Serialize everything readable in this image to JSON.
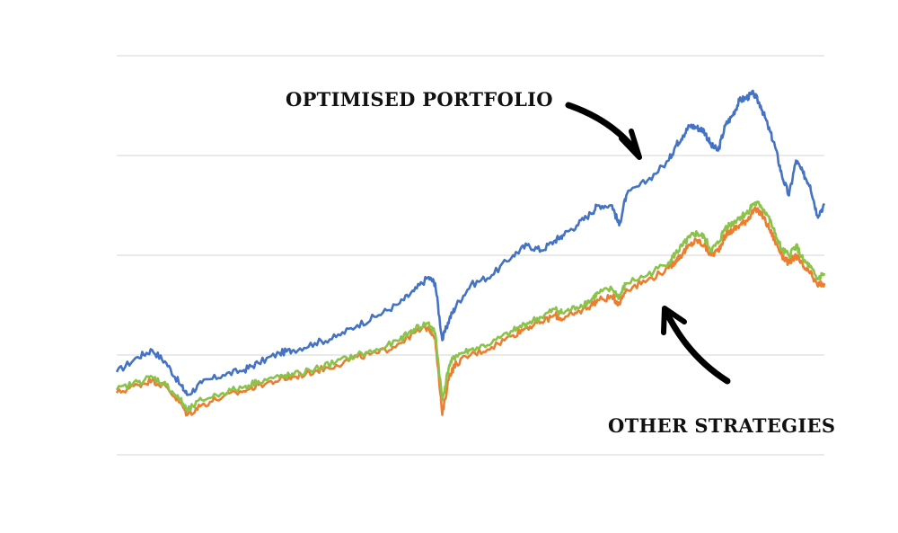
{
  "chart_data": {
    "type": "line",
    "title": "",
    "xlabel": "",
    "ylabel": "",
    "x_range": [
      0,
      100
    ],
    "ylim": [
      0,
      4
    ],
    "gridlines": [
      0,
      1,
      2,
      3,
      4
    ],
    "grid": true,
    "legend": "none",
    "annotations": [
      {
        "text": "OPTIMISED PORTFOLIO",
        "target_series": 0
      },
      {
        "text": "OTHER STRATEGIES",
        "target_series": 1
      }
    ],
    "series": [
      {
        "color": "#4472C4",
        "x": [
          0,
          3,
          5,
          7,
          9,
          10,
          12,
          15,
          18,
          20,
          23,
          25,
          28,
          31,
          34,
          37,
          40,
          42,
          44,
          45,
          46,
          47,
          48,
          50,
          53,
          56,
          58,
          60,
          62,
          63,
          65,
          67,
          68,
          70,
          71,
          72,
          75,
          78,
          79,
          80,
          81,
          82,
          83,
          84,
          85,
          86,
          87,
          88,
          89,
          90,
          91,
          92,
          93,
          94,
          95,
          96,
          97,
          98,
          99,
          100
        ],
        "values": [
          0.83,
          0.98,
          1.05,
          0.92,
          0.7,
          0.6,
          0.72,
          0.8,
          0.85,
          0.92,
          1.02,
          1.05,
          1.12,
          1.18,
          1.3,
          1.4,
          1.52,
          1.64,
          1.78,
          1.72,
          1.15,
          1.36,
          1.5,
          1.7,
          1.8,
          2.0,
          2.1,
          2.05,
          2.15,
          2.2,
          2.3,
          2.42,
          2.5,
          2.5,
          2.3,
          2.6,
          2.75,
          2.95,
          3.1,
          3.2,
          3.3,
          3.28,
          3.25,
          3.1,
          3.05,
          3.3,
          3.4,
          3.55,
          3.58,
          3.62,
          3.5,
          3.3,
          3.1,
          2.8,
          2.6,
          2.95,
          2.82,
          2.7,
          2.4,
          2.5
        ]
      },
      {
        "color": "#ED7D31",
        "x": [
          0,
          3,
          5,
          7,
          9,
          10,
          12,
          15,
          18,
          20,
          23,
          25,
          28,
          31,
          34,
          37,
          40,
          42,
          44,
          45,
          46,
          47,
          48,
          50,
          53,
          56,
          58,
          60,
          62,
          63,
          65,
          67,
          68,
          70,
          71,
          72,
          75,
          78,
          79,
          80,
          81,
          82,
          83,
          84,
          85,
          86,
          87,
          88,
          89,
          90,
          91,
          92,
          93,
          94,
          95,
          96,
          97,
          98,
          99,
          100
        ],
        "values": [
          0.62,
          0.7,
          0.75,
          0.68,
          0.52,
          0.4,
          0.5,
          0.58,
          0.64,
          0.7,
          0.75,
          0.78,
          0.84,
          0.9,
          0.98,
          1.02,
          1.12,
          1.22,
          1.28,
          1.18,
          0.4,
          0.8,
          0.92,
          1.0,
          1.08,
          1.2,
          1.28,
          1.33,
          1.4,
          1.36,
          1.42,
          1.5,
          1.55,
          1.58,
          1.52,
          1.66,
          1.75,
          1.87,
          1.95,
          2.02,
          2.1,
          2.15,
          2.1,
          2.0,
          2.05,
          2.2,
          2.25,
          2.3,
          2.35,
          2.45,
          2.43,
          2.3,
          2.15,
          2.0,
          1.92,
          2.0,
          1.88,
          1.82,
          1.7,
          1.72
        ]
      },
      {
        "color": "#8BC34A",
        "x": [
          0,
          3,
          5,
          7,
          9,
          10,
          12,
          15,
          18,
          20,
          23,
          25,
          28,
          31,
          34,
          37,
          40,
          42,
          44,
          45,
          46,
          47,
          48,
          50,
          53,
          56,
          58,
          60,
          62,
          63,
          65,
          67,
          68,
          70,
          71,
          72,
          75,
          78,
          79,
          80,
          81,
          82,
          83,
          84,
          85,
          86,
          87,
          88,
          89,
          90,
          91,
          92,
          93,
          94,
          95,
          96,
          97,
          98,
          99,
          100
        ],
        "values": [
          0.65,
          0.73,
          0.78,
          0.7,
          0.55,
          0.44,
          0.55,
          0.62,
          0.68,
          0.74,
          0.78,
          0.8,
          0.86,
          0.93,
          1.0,
          1.05,
          1.15,
          1.26,
          1.32,
          1.22,
          0.55,
          0.9,
          1.0,
          1.05,
          1.12,
          1.24,
          1.32,
          1.38,
          1.46,
          1.42,
          1.48,
          1.55,
          1.62,
          1.66,
          1.58,
          1.72,
          1.8,
          1.93,
          2.02,
          2.1,
          2.18,
          2.22,
          2.18,
          2.05,
          2.12,
          2.28,
          2.32,
          2.38,
          2.42,
          2.52,
          2.5,
          2.4,
          2.22,
          2.05,
          2.0,
          2.1,
          1.95,
          1.88,
          1.76,
          1.82
        ]
      }
    ]
  }
}
